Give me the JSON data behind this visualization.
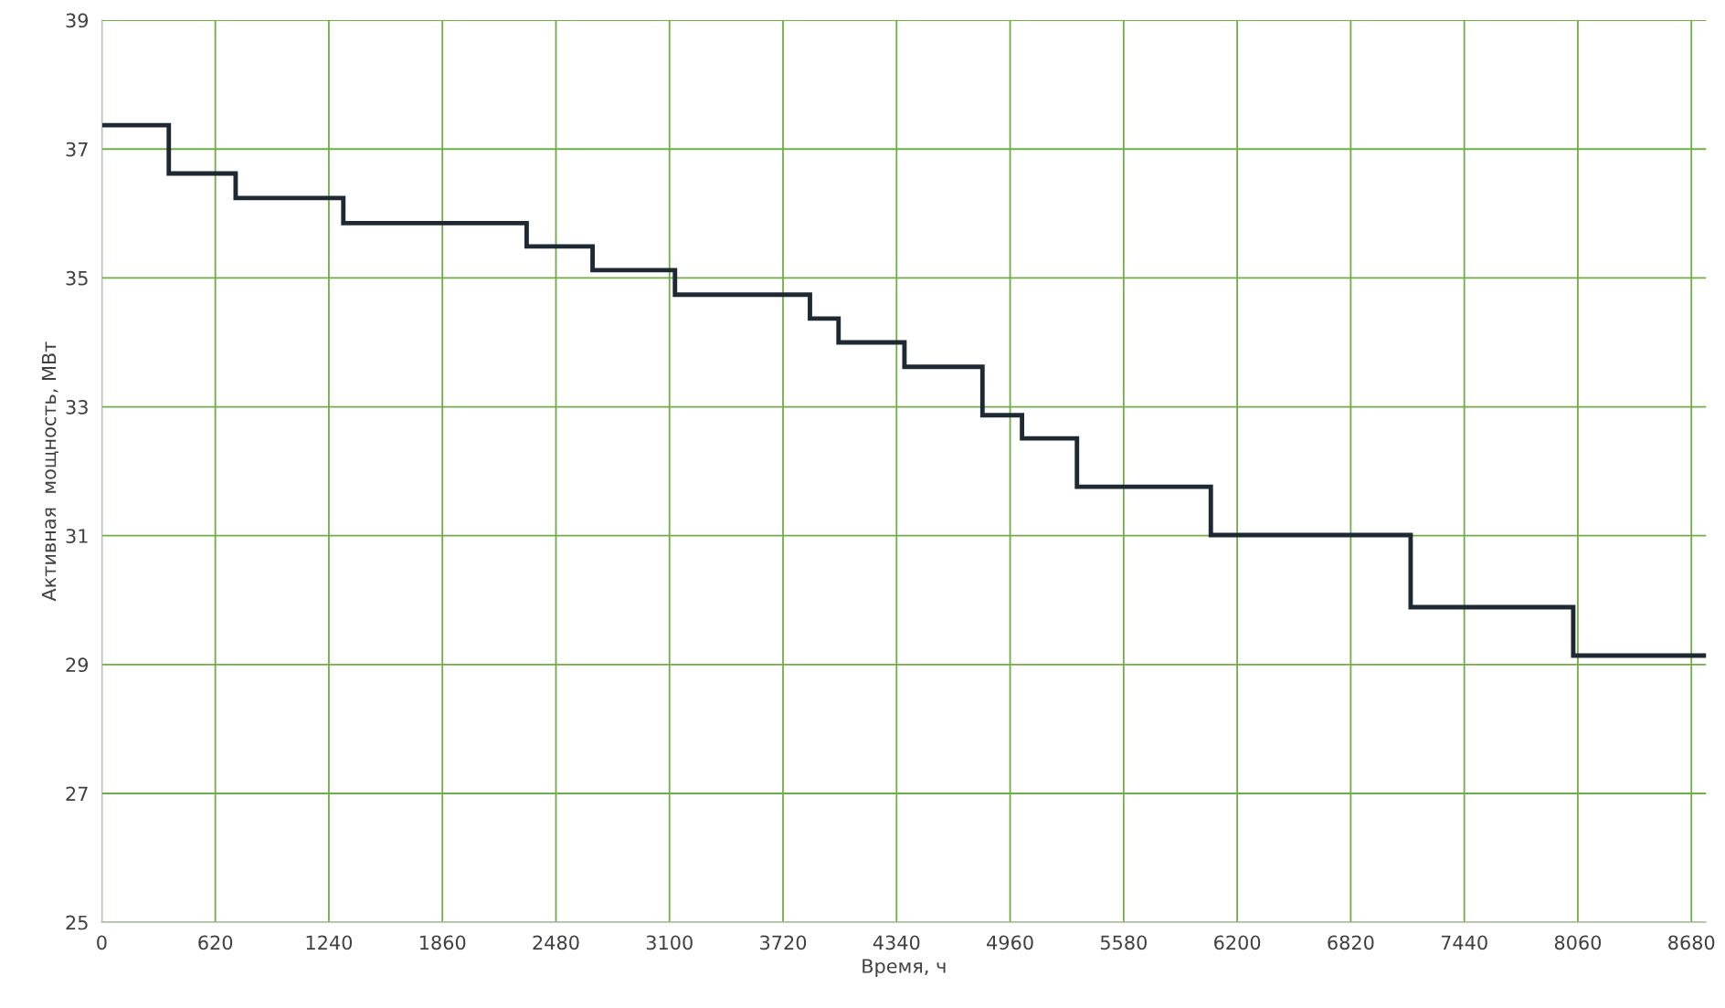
{
  "chart_data": {
    "type": "step",
    "xlabel": "Время, ч",
    "ylabel": "Активная  мощность, МВт",
    "series": [
      {
        "color": "#1f2933",
        "x": [
          0,
          366,
          731,
          1319,
          2320,
          2680,
          3130,
          3867,
          4023,
          4383,
          4809,
          5025,
          5325,
          6056,
          7147,
          8035,
          8760
        ],
        "values": [
          37.37,
          36.62,
          36.24,
          35.85,
          35.49,
          35.12,
          34.74,
          34.37,
          34.0,
          33.62,
          32.87,
          32.51,
          31.76,
          31.01,
          29.89,
          29.14,
          29.14
        ]
      }
    ],
    "xlim": [
      0,
      8760
    ],
    "xticks": [
      0,
      620,
      1240,
      1860,
      2480,
      3100,
      3720,
      4340,
      4960,
      5580,
      6200,
      6820,
      7440,
      8060,
      8680
    ],
    "ylim": [
      25,
      39
    ],
    "yticks": [
      25,
      27,
      29,
      31,
      33,
      35,
      37,
      39
    ],
    "grid": true,
    "line_style": "solid",
    "marker": "none",
    "legend": false
  }
}
